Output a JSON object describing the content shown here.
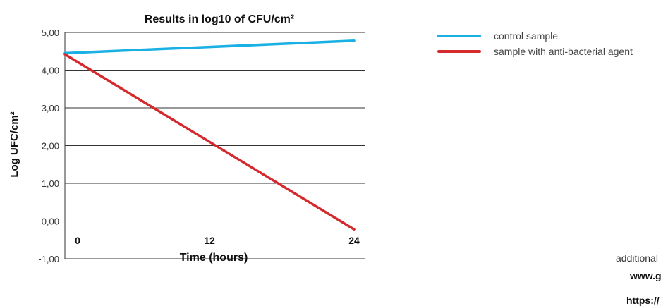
{
  "chart_data": {
    "type": "line",
    "title": "Results in log10 of CFU/cm²",
    "xlabel": "Time (hours)",
    "ylabel": "Log UFC/cm²",
    "x": [
      0,
      24
    ],
    "x_ticks": [
      0,
      12,
      24
    ],
    "x_tick_labels": [
      "0",
      "12",
      "24"
    ],
    "y_ticks": [
      "5,00",
      "4,00",
      "3,00",
      "2,00",
      "1,00",
      "0,00",
      "-1,00"
    ],
    "ylim": [
      -1,
      5
    ],
    "grid": "horizontal",
    "legend_position": "right",
    "series": [
      {
        "name": "control sample",
        "color": "#1ab0e4",
        "values": [
          4.45,
          4.78
        ]
      },
      {
        "name": "sample with anti-bacterial agent",
        "color": "#d42a2e",
        "values": [
          4.42,
          -0.22
        ]
      }
    ]
  },
  "side_notes": {
    "line1": "additional",
    "line2": "www.g",
    "line3": "https://"
  }
}
